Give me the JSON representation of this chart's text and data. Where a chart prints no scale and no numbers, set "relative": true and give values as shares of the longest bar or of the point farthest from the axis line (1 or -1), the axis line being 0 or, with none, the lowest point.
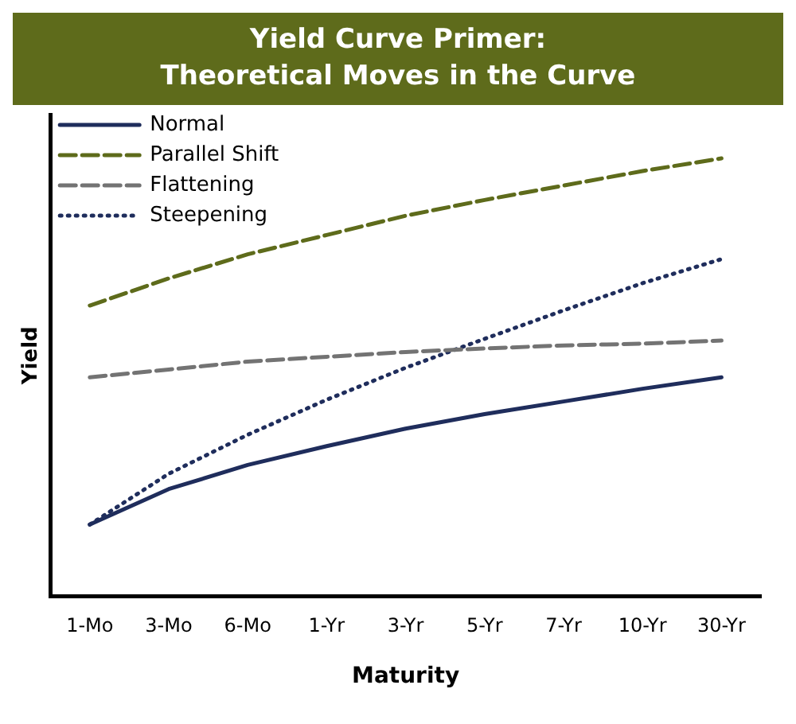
{
  "chart_data": {
    "type": "line",
    "title": "Yield Curve Primer:\nTheoretical Moves in the Curve",
    "xlabel": "Maturity",
    "ylabel": "Yield",
    "relative": true,
    "categories": [
      "1-Mo",
      "3-Mo",
      "6-Mo",
      "1-Yr",
      "3-Yr",
      "5-Yr",
      "7-Yr",
      "10-Yr",
      "30-Yr"
    ],
    "series": [
      {
        "name": "Normal",
        "color": "#1f2d5c",
        "line_style": "solid",
        "values": [
          0.164,
          0.245,
          0.3,
          0.343,
          0.383,
          0.416,
          0.445,
          0.474,
          0.5
        ]
      },
      {
        "name": "Parallel Shift",
        "color": "#5e6b1b",
        "line_style": "dashed",
        "values": [
          0.664,
          0.726,
          0.781,
          0.825,
          0.869,
          0.905,
          0.938,
          0.971,
          1
        ]
      },
      {
        "name": "Flattening",
        "color": "#737373",
        "line_style": "dashed",
        "values": [
          0.5,
          0.518,
          0.536,
          0.547,
          0.558,
          0.566,
          0.573,
          0.577,
          0.584
        ]
      },
      {
        "name": "Steepening",
        "color": "#1f2d5c",
        "line_style": "dotted",
        "values": [
          0.164,
          0.28,
          0.369,
          0.449,
          0.522,
          0.588,
          0.653,
          0.715,
          0.77
        ]
      }
    ],
    "legend": "top left",
    "grid": false,
    "marker": "none",
    "tick_labels": "x"
  }
}
